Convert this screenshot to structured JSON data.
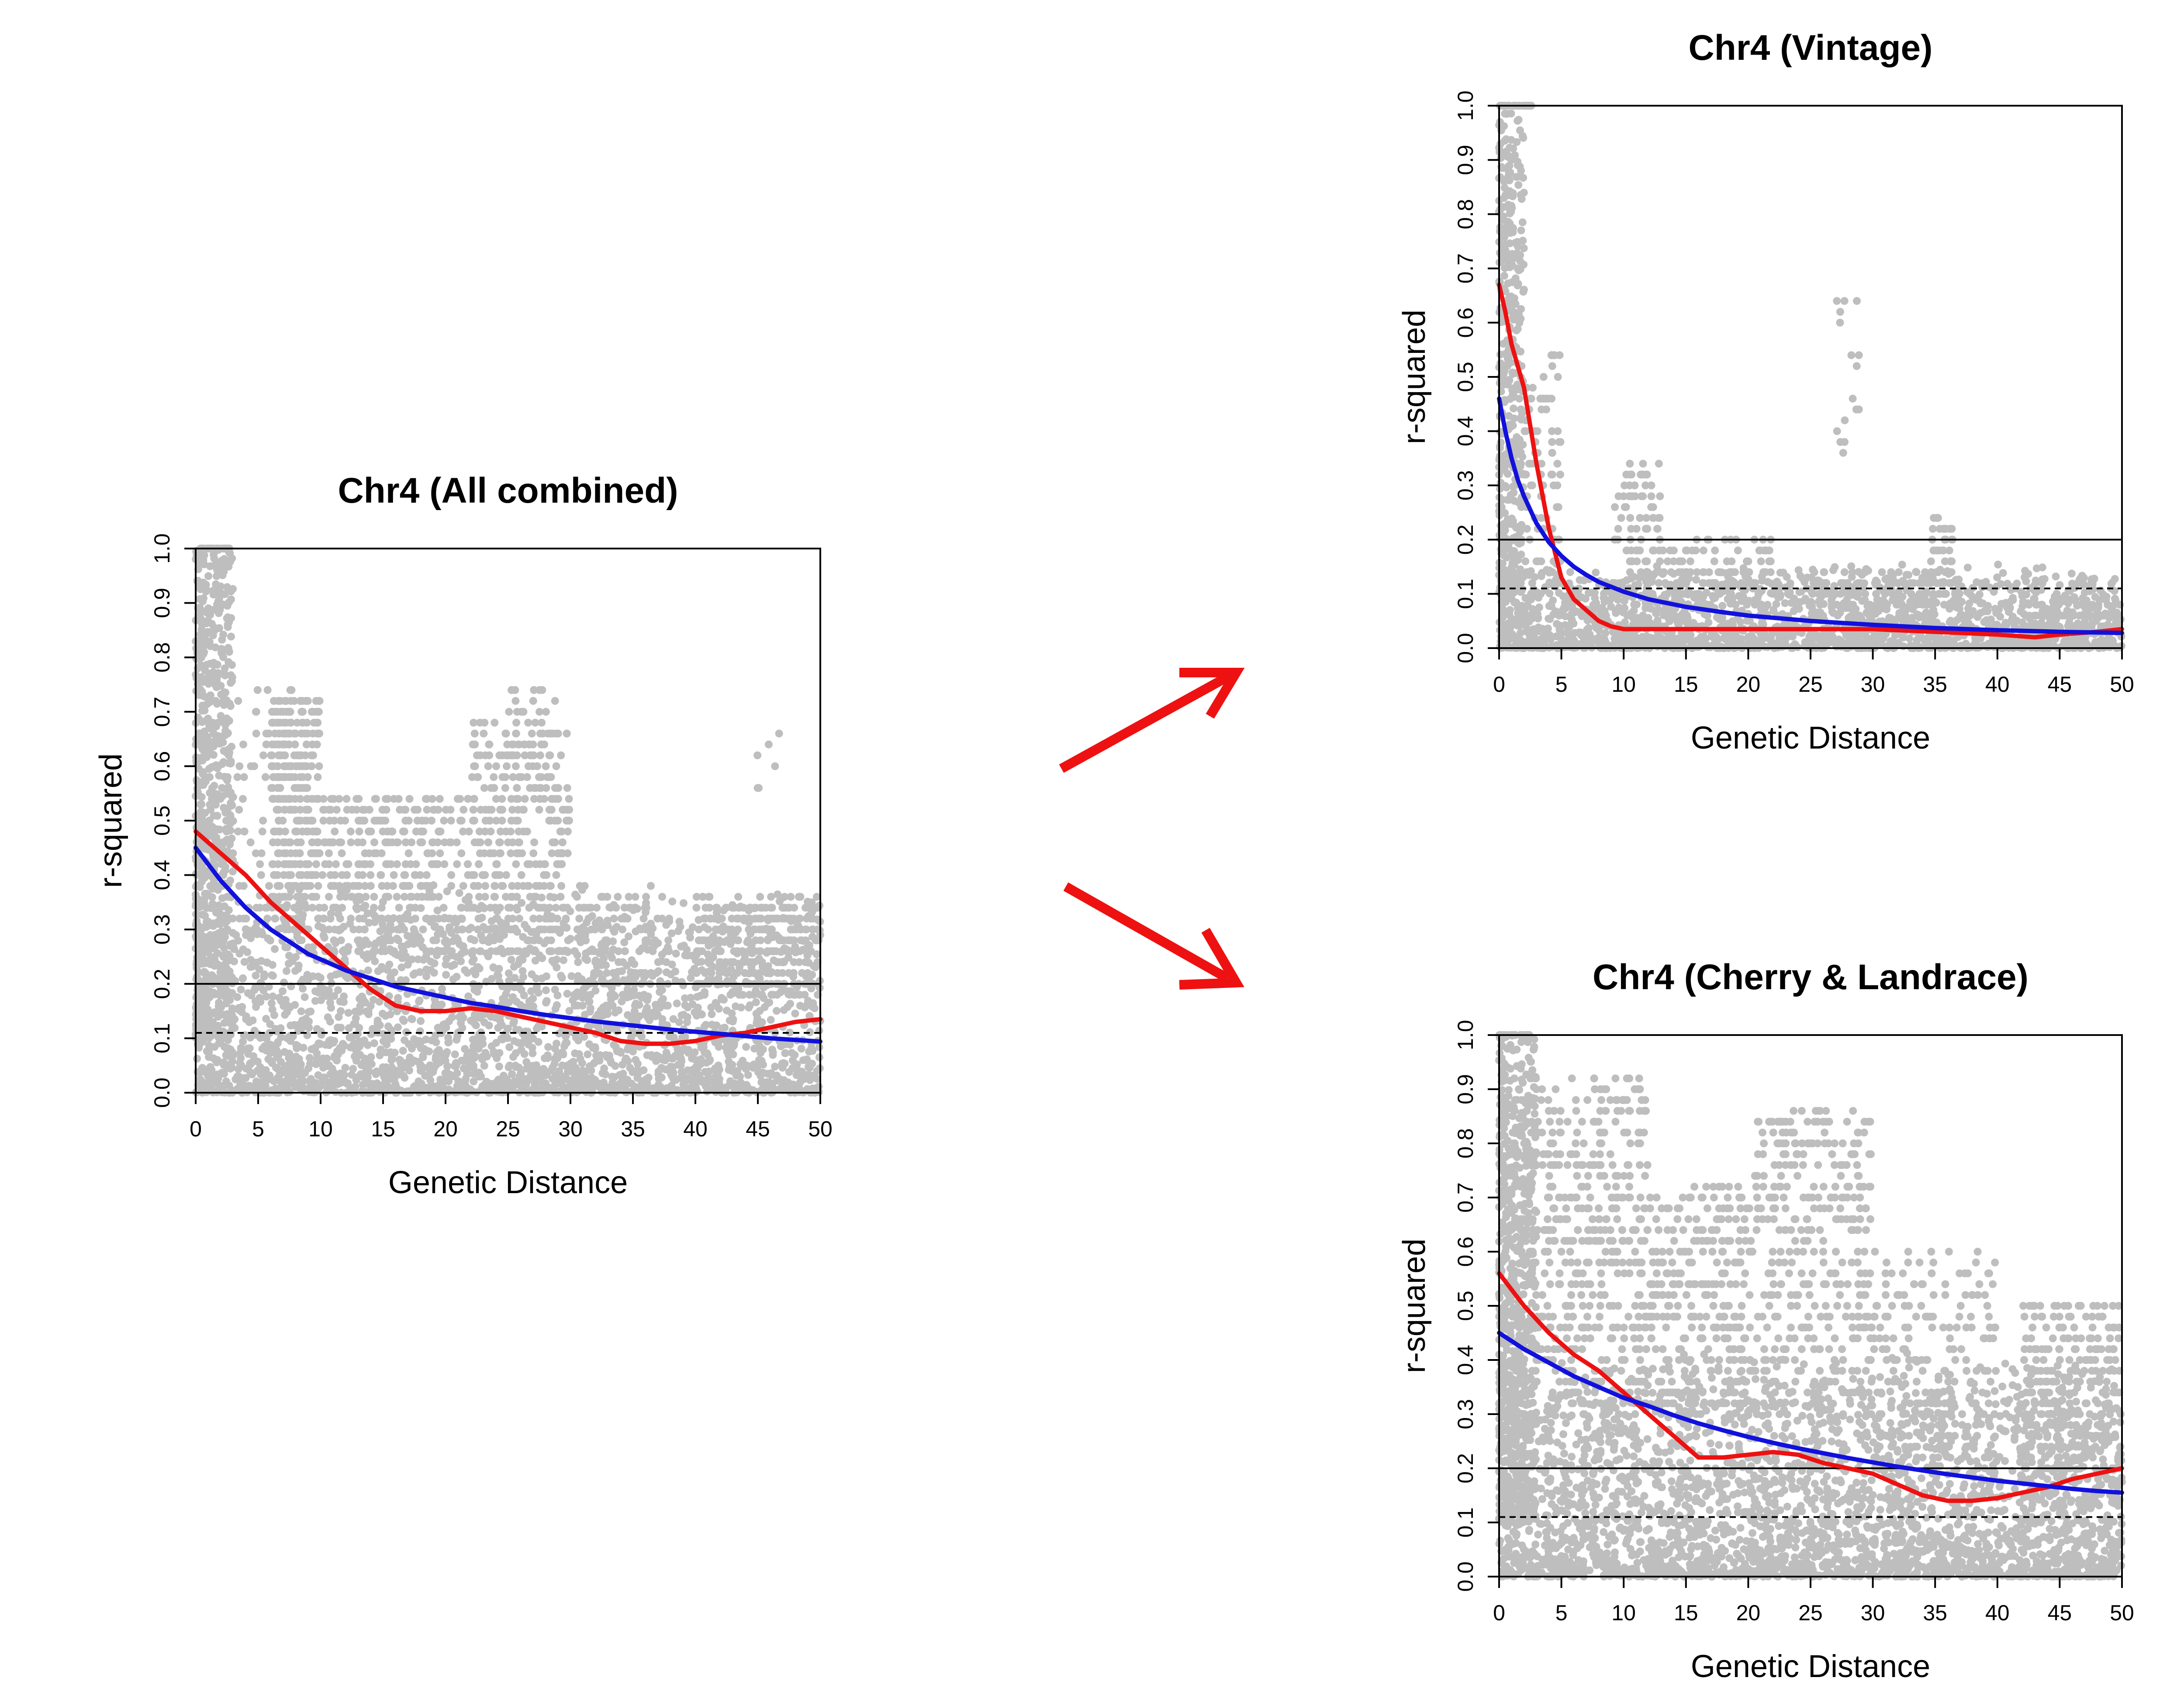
{
  "colors": {
    "points": "#bebebe",
    "loess_line": "#ee1111",
    "fit_line": "#1111dd",
    "arrow": "#ee1111",
    "reference_lines": "#000000"
  },
  "chart_data": [
    {
      "id": "all",
      "type": "scatter",
      "title": "Chr4 (All combined)",
      "xlabel": "Genetic Distance",
      "ylabel": "r-squared",
      "xlim": [
        0,
        50
      ],
      "ylim": [
        0,
        1
      ],
      "xticks": [
        "0",
        "5",
        "10",
        "15",
        "20",
        "25",
        "30",
        "35",
        "40",
        "45",
        "50"
      ],
      "yticks": [
        "0.0",
        "0.1",
        "0.2",
        "0.3",
        "0.4",
        "0.5",
        "0.6",
        "0.7",
        "0.8",
        "0.9",
        "1.0"
      ],
      "hlines": [
        {
          "y": 0.2,
          "style": "solid"
        },
        {
          "y": 0.11,
          "style": "dashed"
        }
      ],
      "series": [
        {
          "kind": "red-smooth",
          "x": [
            0,
            2,
            4,
            6,
            8,
            10,
            12,
            14,
            16,
            18,
            20,
            22,
            24,
            26,
            28,
            30,
            32,
            34,
            36,
            38,
            40,
            42,
            44,
            46,
            48,
            50
          ],
          "y": [
            0.48,
            0.44,
            0.4,
            0.35,
            0.31,
            0.27,
            0.23,
            0.19,
            0.16,
            0.15,
            0.15,
            0.155,
            0.15,
            0.14,
            0.13,
            0.12,
            0.11,
            0.095,
            0.09,
            0.09,
            0.095,
            0.105,
            0.11,
            0.12,
            0.13,
            0.135
          ]
        },
        {
          "kind": "blue-fit",
          "x": [
            0,
            1,
            2,
            3,
            4,
            5,
            6,
            7,
            8,
            9,
            10,
            12,
            14,
            16,
            18,
            20,
            22,
            24,
            26,
            28,
            30,
            32,
            34,
            36,
            38,
            40,
            42,
            44,
            46,
            48,
            50
          ],
          "y": [
            0.45,
            0.42,
            0.39,
            0.365,
            0.34,
            0.32,
            0.3,
            0.285,
            0.27,
            0.255,
            0.245,
            0.225,
            0.21,
            0.195,
            0.185,
            0.175,
            0.165,
            0.158,
            0.15,
            0.143,
            0.137,
            0.131,
            0.126,
            0.121,
            0.116,
            0.112,
            0.108,
            0.104,
            0.1,
            0.097,
            0.094
          ]
        }
      ],
      "scatter": {
        "background": {
          "count": 2600,
          "xmax": 50,
          "ymax": 0.3
        },
        "dense_near_zero": {
          "count": 700,
          "xmax": 3,
          "ymin": 0.1,
          "ymax": 1.0
        },
        "clusters": [
          {
            "x": [
              6,
              10
            ],
            "y": [
              0.3,
              0.73
            ],
            "count": 320
          },
          {
            "x": [
              10,
              22
            ],
            "y": [
              0.25,
              0.55
            ],
            "count": 360
          },
          {
            "x": [
              22,
              30
            ],
            "y": [
              0.25,
              0.68
            ],
            "count": 380
          },
          {
            "x": [
              40,
              50
            ],
            "y": [
              0.18,
              0.36
            ],
            "count": 320
          },
          {
            "x": [
              30,
              38
            ],
            "y": [
              0.15,
              0.38
            ],
            "count": 120
          },
          {
            "x": [
              1,
              10
            ],
            "y": [
              0.3,
              0.75
            ],
            "count": 140
          },
          {
            "x": [
              25,
              29
            ],
            "y": [
              0.6,
              0.75
            ],
            "count": 25
          },
          {
            "x": [
              43,
              47
            ],
            "y": [
              0.55,
              0.74
            ],
            "count": 6
          }
        ]
      }
    },
    {
      "id": "vintage",
      "type": "scatter",
      "title": "Chr4 (Vintage)",
      "xlabel": "Genetic Distance",
      "ylabel": "r-squared",
      "xlim": [
        0,
        50
      ],
      "ylim": [
        0,
        1
      ],
      "xticks": [
        "0",
        "5",
        "10",
        "15",
        "20",
        "25",
        "30",
        "35",
        "40",
        "45",
        "50"
      ],
      "yticks": [
        "0.0",
        "0.1",
        "0.2",
        "0.3",
        "0.4",
        "0.5",
        "0.6",
        "0.7",
        "0.8",
        "0.9",
        "1.0"
      ],
      "hlines": [
        {
          "y": 0.2,
          "style": "solid"
        },
        {
          "y": 0.11,
          "style": "dashed"
        }
      ],
      "series": [
        {
          "kind": "red-smooth",
          "x": [
            0,
            0.5,
            1,
            2,
            3,
            4,
            5,
            6,
            7,
            8,
            9,
            10,
            12,
            15,
            20,
            25,
            30,
            35,
            40,
            43,
            45,
            48,
            50
          ],
          "y": [
            0.67,
            0.62,
            0.56,
            0.48,
            0.34,
            0.22,
            0.13,
            0.09,
            0.07,
            0.05,
            0.04,
            0.035,
            0.035,
            0.035,
            0.035,
            0.035,
            0.035,
            0.03,
            0.025,
            0.02,
            0.025,
            0.03,
            0.035
          ]
        },
        {
          "kind": "blue-fit",
          "x": [
            0,
            0.5,
            1,
            1.5,
            2,
            3,
            4,
            5,
            6,
            7,
            8,
            10,
            12,
            15,
            18,
            20,
            25,
            30,
            35,
            40,
            45,
            50
          ],
          "y": [
            0.46,
            0.4,
            0.35,
            0.31,
            0.28,
            0.23,
            0.195,
            0.17,
            0.15,
            0.135,
            0.122,
            0.104,
            0.09,
            0.076,
            0.066,
            0.06,
            0.05,
            0.043,
            0.037,
            0.033,
            0.03,
            0.028
          ]
        }
      ],
      "scatter": {
        "background": {
          "count": 1900,
          "xmax": 50,
          "ymax": 0.12
        },
        "dense_near_zero": {
          "count": 420,
          "xmax": 2,
          "ymin": 0.1,
          "ymax": 1.0
        },
        "clusters": [
          {
            "x": [
              1,
              5
            ],
            "y": [
              0.1,
              0.55
            ],
            "count": 110
          },
          {
            "x": [
              9,
              13
            ],
            "y": [
              0.1,
              0.34
            ],
            "count": 90
          },
          {
            "x": [
              13,
              22
            ],
            "y": [
              0.08,
              0.2
            ],
            "count": 110
          },
          {
            "x": [
              27,
              29
            ],
            "y": [
              0.35,
              0.65
            ],
            "count": 16
          },
          {
            "x": [
              34.5,
              36.5
            ],
            "y": [
              0.08,
              0.24
            ],
            "count": 60
          },
          {
            "x": [
              25,
              35
            ],
            "y": [
              0.06,
              0.14
            ],
            "count": 80
          },
          {
            "x": [
              42,
              50
            ],
            "y": [
              0.03,
              0.08
            ],
            "count": 80
          }
        ]
      }
    },
    {
      "id": "cherry",
      "type": "scatter",
      "title": "Chr4 (Cherry & Landrace)",
      "xlabel": "Genetic Distance",
      "ylabel": "r-squared",
      "xlim": [
        0,
        50
      ],
      "ylim": [
        0,
        1
      ],
      "xticks": [
        "0",
        "5",
        "10",
        "15",
        "20",
        "25",
        "30",
        "35",
        "40",
        "45",
        "50"
      ],
      "yticks": [
        "0.0",
        "0.1",
        "0.2",
        "0.3",
        "0.4",
        "0.5",
        "0.6",
        "0.7",
        "0.8",
        "0.9",
        "1.0"
      ],
      "hlines": [
        {
          "y": 0.2,
          "style": "solid"
        },
        {
          "y": 0.11,
          "style": "dashed"
        }
      ],
      "series": [
        {
          "kind": "red-smooth",
          "x": [
            0,
            2,
            4,
            6,
            8,
            10,
            12,
            14,
            16,
            18,
            20,
            22,
            24,
            26,
            28,
            30,
            32,
            34,
            36,
            38,
            40,
            42,
            44,
            46,
            48,
            50
          ],
          "y": [
            0.56,
            0.5,
            0.45,
            0.41,
            0.38,
            0.34,
            0.3,
            0.26,
            0.22,
            0.22,
            0.225,
            0.23,
            0.225,
            0.21,
            0.2,
            0.19,
            0.17,
            0.15,
            0.14,
            0.14,
            0.145,
            0.155,
            0.165,
            0.18,
            0.19,
            0.2
          ]
        },
        {
          "kind": "blue-fit",
          "x": [
            0,
            2,
            4,
            6,
            8,
            10,
            12,
            14,
            16,
            18,
            20,
            22,
            24,
            26,
            28,
            30,
            32,
            34,
            36,
            38,
            40,
            42,
            44,
            46,
            48,
            50
          ],
          "y": [
            0.45,
            0.42,
            0.395,
            0.37,
            0.35,
            0.33,
            0.315,
            0.298,
            0.283,
            0.27,
            0.258,
            0.247,
            0.237,
            0.228,
            0.219,
            0.211,
            0.203,
            0.196,
            0.189,
            0.183,
            0.177,
            0.172,
            0.167,
            0.162,
            0.158,
            0.155
          ]
        }
      ],
      "scatter": {
        "background": {
          "count": 3000,
          "xmax": 50,
          "ymax": 0.32
        },
        "dense_near_zero": {
          "count": 700,
          "xmax": 3,
          "ymin": 0.1,
          "ymax": 1.0
        },
        "clusters": [
          {
            "x": [
              1,
              12
            ],
            "y": [
              0.3,
              0.92
            ],
            "count": 560
          },
          {
            "x": [
              12,
              20
            ],
            "y": [
              0.3,
              0.72
            ],
            "count": 300
          },
          {
            "x": [
              20,
              30
            ],
            "y": [
              0.3,
              0.86
            ],
            "count": 360
          },
          {
            "x": [
              30,
              40
            ],
            "y": [
              0.2,
              0.6
            ],
            "count": 200
          },
          {
            "x": [
              42,
              50
            ],
            "y": [
              0.18,
              0.5
            ],
            "count": 260
          },
          {
            "x": [
              22,
              26
            ],
            "y": [
              0.8,
              0.86
            ],
            "count": 20
          }
        ]
      }
    }
  ]
}
